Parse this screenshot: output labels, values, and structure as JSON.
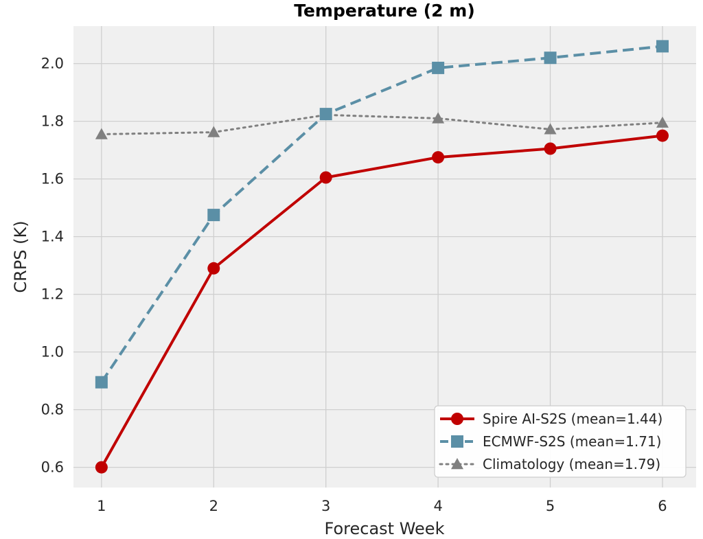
{
  "chart_data": {
    "type": "line",
    "title": "Temperature (2 m)",
    "xlabel": "Forecast Week",
    "ylabel": "CRPS (K)",
    "x": [
      1,
      2,
      3,
      4,
      5,
      6
    ],
    "xlim": [
      0.75,
      6.3
    ],
    "ylim": [
      0.53,
      2.13
    ],
    "xticks": [
      1,
      2,
      3,
      4,
      5,
      6
    ],
    "yticks": [
      0.6,
      0.8,
      1.0,
      1.2,
      1.4,
      1.6,
      1.8,
      2.0
    ],
    "ytick_labels": [
      "0.6",
      "0.8",
      "1.0",
      "1.2",
      "1.4",
      "1.6",
      "1.8",
      "2.0"
    ],
    "grid": true,
    "legend_position": "bottom-right",
    "series": [
      {
        "name": "Spire AI-S2S (mean=1.44)",
        "values": [
          0.6,
          1.29,
          1.605,
          1.675,
          1.705,
          1.75
        ],
        "color": "#c00000",
        "line_style": "solid",
        "marker": "circle"
      },
      {
        "name": "ECMWF-S2S (mean=1.71)",
        "values": [
          0.895,
          1.475,
          1.825,
          1.985,
          2.02,
          2.06
        ],
        "color": "#5b8fa6",
        "line_style": "dashed",
        "marker": "square"
      },
      {
        "name": "Climatology (mean=1.79)",
        "values": [
          1.755,
          1.762,
          1.822,
          1.81,
          1.772,
          1.795
        ],
        "color": "#808080",
        "line_style": "dotted",
        "marker": "triangle"
      }
    ]
  }
}
